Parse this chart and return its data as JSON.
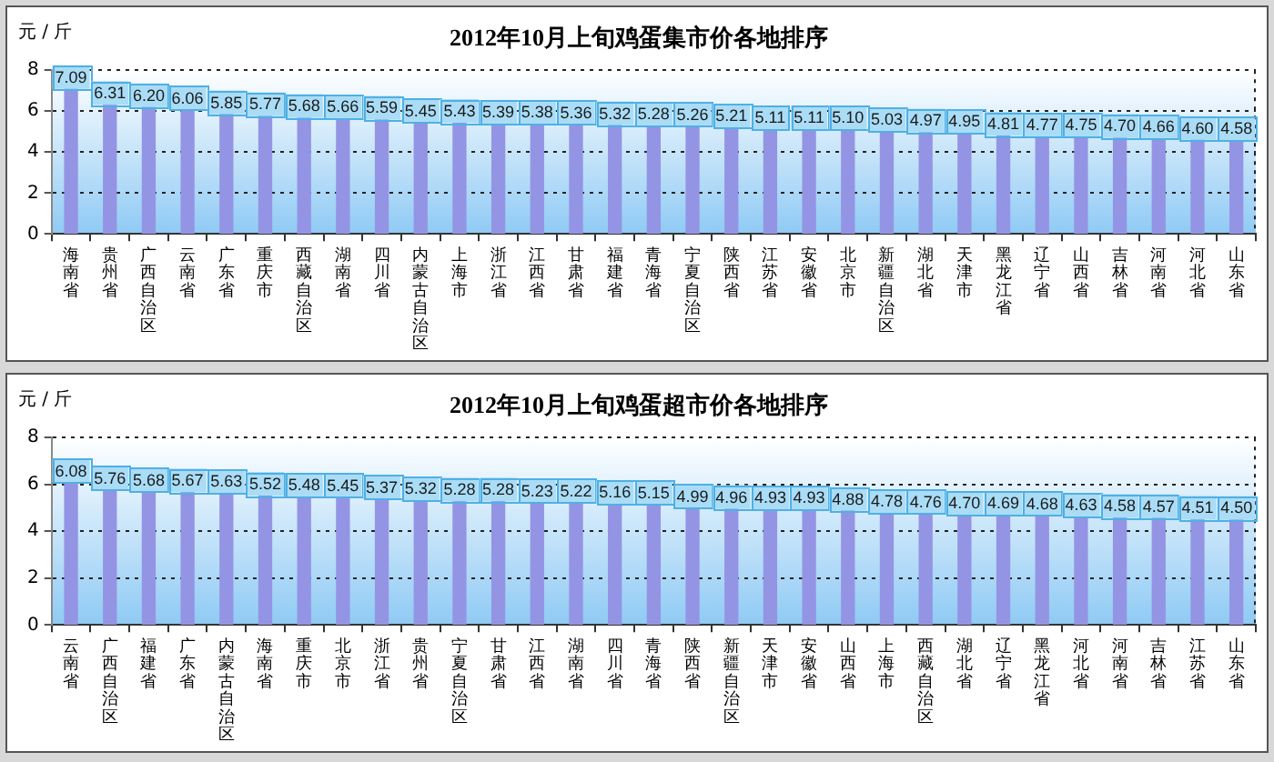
{
  "chart_data": [
    {
      "type": "bar",
      "title": "2012年10月上旬鸡蛋集市价各地排序",
      "ylabel": "元 / 斤",
      "categories": [
        "海南省",
        "贵州省",
        "广西自治区",
        "云南省",
        "广东省",
        "重庆市",
        "西藏自治区",
        "湖南省",
        "四川省",
        "内蒙古自治区",
        "上海市",
        "浙江省",
        "江西省",
        "甘肃省",
        "福建省",
        "青海省",
        "宁夏自治区",
        "陕西省",
        "江苏省",
        "安徽省",
        "北京市",
        "新疆自治区",
        "湖北省",
        "天津市",
        "黑龙江省",
        "辽宁省",
        "山西省",
        "吉林省",
        "河南省",
        "河北省",
        "山东省"
      ],
      "values": [
        7.09,
        6.31,
        6.2,
        6.06,
        5.85,
        5.77,
        5.68,
        5.66,
        5.59,
        5.45,
        5.43,
        5.39,
        5.38,
        5.36,
        5.32,
        5.28,
        5.26,
        5.21,
        5.11,
        5.11,
        5.1,
        5.03,
        4.97,
        4.95,
        4.81,
        4.77,
        4.75,
        4.7,
        4.66,
        4.6,
        4.58
      ],
      "value_labels": [
        "7.09",
        "6.31",
        "6.20",
        "6.06",
        "5.85",
        "5.77",
        "5.68",
        "5.66",
        "5.59",
        "5.45",
        "5.43",
        "5.39",
        "5.38",
        "5.36",
        "5.32",
        "5.28",
        "5.26",
        "5.21",
        "5.11",
        "5.11",
        "5.10",
        "5.03",
        "4.97",
        "4.95",
        "4.81",
        "4.77",
        "4.75",
        "4.70",
        "4.66",
        "4.60",
        "4.58"
      ],
      "color": "#9494e4",
      "ylim": [
        0,
        8
      ],
      "yticks": [
        0,
        2,
        4,
        6,
        8
      ],
      "grid": "y"
    },
    {
      "type": "bar",
      "title": "2012年10月上旬鸡蛋超市价各地排序",
      "ylabel": "元 / 斤",
      "categories": [
        "云南省",
        "广西自治区",
        "福建省",
        "广东省",
        "内蒙古自治区",
        "海南省",
        "重庆市",
        "北京市",
        "浙江省",
        "贵州省",
        "宁夏自治区",
        "甘肃省",
        "江西省",
        "湖南省",
        "四川省",
        "青海省",
        "陕西省",
        "新疆自治区",
        "天津市",
        "安徽省",
        "山西省",
        "上海市",
        "西藏自治区",
        "湖北省",
        "辽宁省",
        "黑龙江省",
        "河北省",
        "河南省",
        "吉林省",
        "江苏省",
        "山东省"
      ],
      "values": [
        6.08,
        5.76,
        5.68,
        5.67,
        5.63,
        5.52,
        5.48,
        5.45,
        5.37,
        5.32,
        5.28,
        5.28,
        5.23,
        5.22,
        5.16,
        5.15,
        4.99,
        4.96,
        4.93,
        4.93,
        4.88,
        4.78,
        4.76,
        4.7,
        4.69,
        4.68,
        4.63,
        4.58,
        4.57,
        4.51,
        4.5
      ],
      "value_labels": [
        "6.08",
        "5.76",
        "5.68",
        "5.67",
        "5.63",
        "5.52",
        "5.48",
        "5.45",
        "5.37",
        "5.32",
        "5.28",
        "5.28",
        "5.23",
        "5.22",
        "5.16",
        "5.15",
        "4.99",
        "4.96",
        "4.93",
        "4.93",
        "4.88",
        "4.78",
        "4.76",
        "4.70",
        "4.69",
        "4.68",
        "4.63",
        "4.58",
        "4.57",
        "4.51",
        "4.50"
      ],
      "color": "#9494e4",
      "ylim": [
        0,
        8
      ],
      "yticks": [
        0,
        2,
        4,
        6,
        8
      ],
      "grid": "y"
    }
  ]
}
